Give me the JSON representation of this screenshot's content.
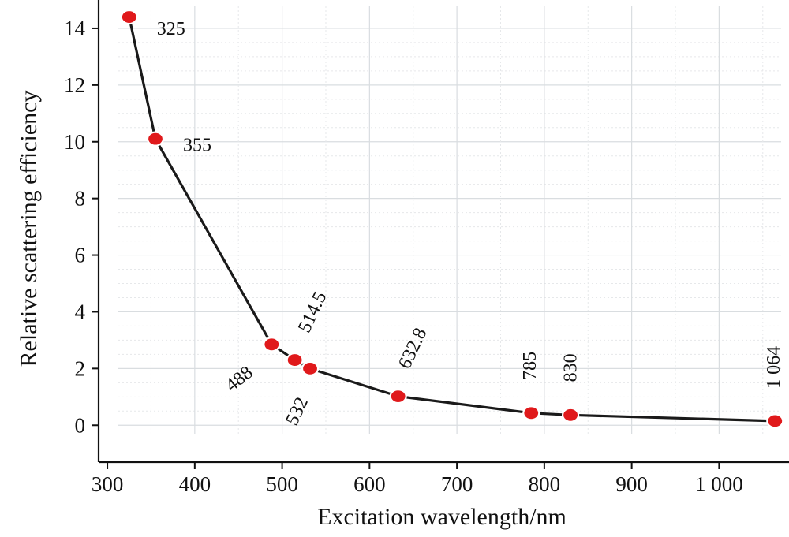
{
  "chart_data": {
    "type": "line",
    "xlabel": "Excitation wavelength/nm",
    "ylabel": "Relative scattering efficiency",
    "xlim": [
      290,
      1080
    ],
    "ylim": [
      -1.3,
      15
    ],
    "grid": true,
    "x_ticks": [
      300,
      400,
      500,
      600,
      700,
      800,
      900,
      1000
    ],
    "x_tick_labels": [
      "300",
      "400",
      "500",
      "600",
      "700",
      "800",
      "900",
      "1 000"
    ],
    "y_ticks": [
      0,
      2,
      4,
      6,
      8,
      10,
      12,
      14
    ],
    "y_tick_labels": [
      "0",
      "2",
      "4",
      "6",
      "8",
      "10",
      "12",
      "14"
    ],
    "series": [
      {
        "color": "#e0191b",
        "line_color": "#1a1a1a",
        "points": [
          {
            "x": 325,
            "y": 14.4,
            "label": "325"
          },
          {
            "x": 355,
            "y": 10.1,
            "label": "355"
          },
          {
            "x": 488,
            "y": 2.85,
            "label": "488"
          },
          {
            "x": 514.5,
            "y": 2.3,
            "label": "514.5"
          },
          {
            "x": 532,
            "y": 2.0,
            "label": "532"
          },
          {
            "x": 632.8,
            "y": 1.02,
            "label": "632.8"
          },
          {
            "x": 785,
            "y": 0.43,
            "label": "785"
          },
          {
            "x": 830,
            "y": 0.36,
            "label": "830"
          },
          {
            "x": 1064,
            "y": 0.15,
            "label": "1 064"
          }
        ]
      }
    ]
  }
}
